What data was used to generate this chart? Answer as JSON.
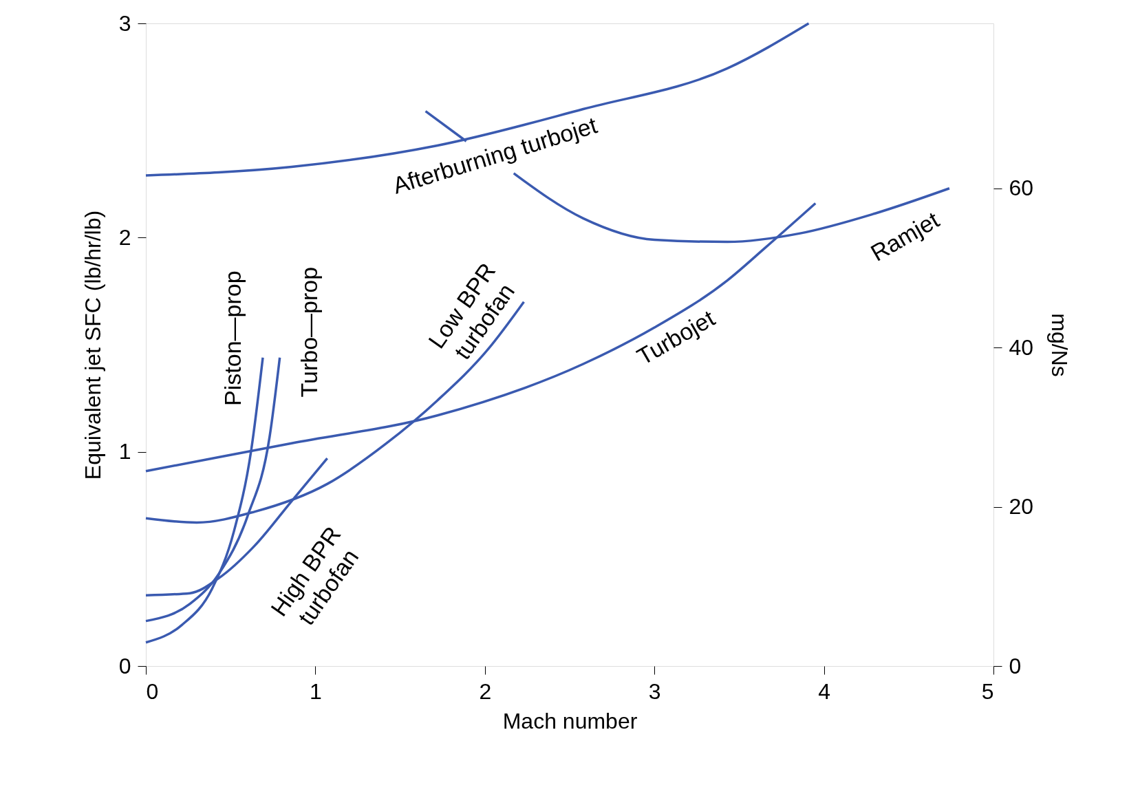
{
  "chart_data": {
    "type": "line",
    "xlabel": "Mach number",
    "ylabel": "Equivalent jet SFC (lb/hr/lb)",
    "y2label": "mg/Ns",
    "xlim": [
      0,
      5
    ],
    "xticks": [
      0,
      1,
      2,
      3,
      4,
      5
    ],
    "ylim": [
      0,
      3
    ],
    "yticks": [
      0,
      1,
      2,
      3
    ],
    "y2lim": [
      0,
      80.7
    ],
    "y2ticks": [
      0,
      20,
      40,
      60
    ],
    "grid": false,
    "marker": "none",
    "line_style": "solid",
    "series": [
      {
        "name": "Afterburning turbojet",
        "color": "#3a5ab0",
        "x": [
          0,
          0.86,
          1.72,
          2.58,
          3.43,
          3.91
        ],
        "values": [
          2.29,
          2.33,
          2.43,
          2.6,
          2.79,
          3.0
        ]
      },
      {
        "color": "#3a5ab0",
        "x": [
          1.65,
          1.89
        ],
        "values": [
          2.59,
          2.45
        ]
      },
      {
        "name": "Ramjet",
        "color": "#3a5ab0",
        "x": [
          2.17,
          2.58,
          3.0,
          3.43,
          3.86,
          4.29,
          4.74
        ],
        "values": [
          2.3,
          2.09,
          1.99,
          1.98,
          2.02,
          2.11,
          2.23
        ]
      },
      {
        "name": "Turbojet",
        "color": "#3a5ab0",
        "x": [
          0,
          0.86,
          1.72,
          2.58,
          3.0,
          3.43,
          3.65,
          3.95
        ],
        "values": [
          0.91,
          1.04,
          1.17,
          1.41,
          1.58,
          1.8,
          1.95,
          2.16
        ]
      },
      {
        "name": "Low BPR turbofan",
        "color": "#3a5ab0",
        "x": [
          0,
          0.3,
          0.64,
          1.07,
          1.42,
          1.72,
          2.02,
          2.23
        ],
        "values": [
          0.69,
          0.67,
          0.72,
          0.85,
          1.04,
          1.24,
          1.48,
          1.7
        ]
      },
      {
        "name": "High BPR turbofan",
        "color": "#3a5ab0",
        "x": [
          0,
          0.26,
          0.43,
          0.64,
          0.86,
          1.07
        ],
        "values": [
          0.33,
          0.34,
          0.41,
          0.56,
          0.77,
          0.97
        ]
      },
      {
        "name": "Piston—prop",
        "color": "#3a5ab0",
        "x": [
          0,
          0.21,
          0.39,
          0.52,
          0.62,
          0.69
        ],
        "values": [
          0.11,
          0.19,
          0.36,
          0.63,
          1.0,
          1.44
        ]
      },
      {
        "name": "Turbo—prop",
        "color": "#3a5ab0",
        "x": [
          0,
          0.26,
          0.43,
          0.6,
          0.73,
          0.79
        ],
        "values": [
          0.21,
          0.29,
          0.43,
          0.7,
          1.07,
          1.44
        ]
      }
    ]
  }
}
